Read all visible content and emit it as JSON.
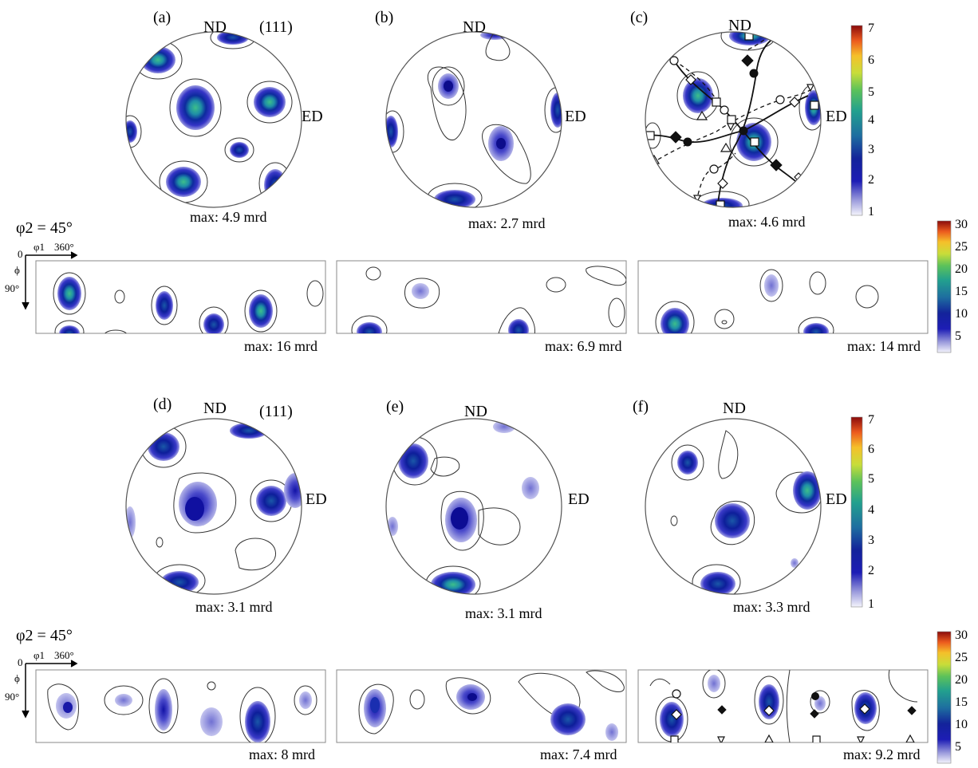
{
  "row1": {
    "phi2_label": "φ2 = 45°",
    "odf_axis": {
      "origin": "0",
      "x_label": "φ1",
      "x_max": "360°",
      "y_label": "ϕ",
      "y_tick": "90°"
    },
    "panels": [
      {
        "letter": "(a)",
        "nd": "ND",
        "ed": "ED",
        "plane": "(111)",
        "pf_max": "max: 4.9 mrd",
        "odf_max": "max: 16 mrd"
      },
      {
        "letter": "(b)",
        "nd": "ND",
        "ed": "ED",
        "plane": "",
        "pf_max": "max: 2.7 mrd",
        "odf_max": "max: 6.9 mrd"
      },
      {
        "letter": "(c)",
        "nd": "ND",
        "ed": "ED",
        "plane": "",
        "pf_max": "max: 4.6 mrd",
        "odf_max": "max: 14 mrd"
      }
    ],
    "pf_colorbar_ticks": [
      "7",
      "6",
      "5",
      "4",
      "3",
      "2",
      "1"
    ],
    "odf_colorbar_ticks": [
      "30",
      "25",
      "20",
      "15",
      "10",
      "5"
    ]
  },
  "row2": {
    "phi2_label": "φ2 = 45°",
    "odf_axis": {
      "origin": "0",
      "x_label": "φ1",
      "x_max": "360°",
      "y_label": "ϕ",
      "y_tick": "90°"
    },
    "panels": [
      {
        "letter": "(d)",
        "nd": "ND",
        "ed": "ED",
        "plane": "(111)",
        "pf_max": "max: 3.1 mrd",
        "odf_max": "max: 8 mrd"
      },
      {
        "letter": "(e)",
        "nd": "ND",
        "ed": "ED",
        "plane": "",
        "pf_max": "max: 3.1 mrd",
        "odf_max": "max: 7.4 mrd"
      },
      {
        "letter": "(f)",
        "nd": "ND",
        "ed": "ED",
        "plane": "",
        "pf_max": "max: 3.3 mrd",
        "odf_max": "max: 9.2 mrd"
      }
    ],
    "pf_colorbar_ticks": [
      "7",
      "6",
      "5",
      "4",
      "3",
      "2",
      "1"
    ],
    "odf_colorbar_ticks": [
      "30",
      "25",
      "20",
      "15",
      "10",
      "5"
    ]
  },
  "colormap": [
    "#f2f2fb",
    "#b8b8e6",
    "#6c6cd4",
    "#1f1fb8",
    "#0b0b8f",
    "#1a4aa8",
    "#1f7fa6",
    "#23a08f",
    "#3fbf6a",
    "#9bd03e",
    "#e6e23a",
    "#f5a623",
    "#ee5a1f",
    "#c41a1a",
    "#7a0a0a"
  ]
}
